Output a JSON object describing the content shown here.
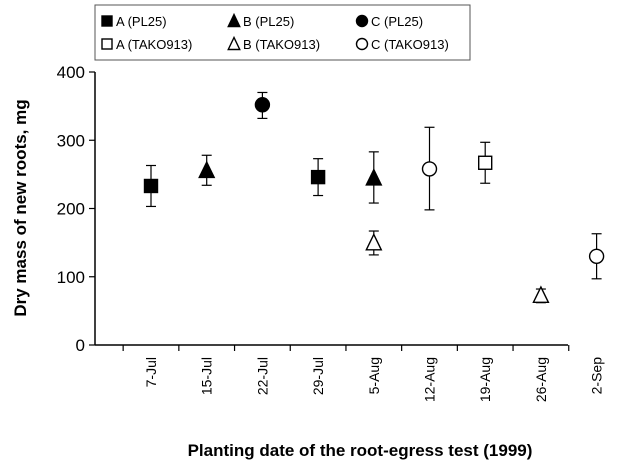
{
  "chart_data": {
    "type": "scatter",
    "xlabel": "Planting date of the root-egress test (1999)",
    "ylabel": "Dry mass of new roots, mg",
    "categories": [
      "7-Jul",
      "15-Jul",
      "22-Jul",
      "29-Jul",
      "5-Aug",
      "12-Aug",
      "19-Aug",
      "26-Aug",
      "2-Sep"
    ],
    "ylim": [
      0,
      400
    ],
    "yticks": [
      0,
      100,
      200,
      300,
      400
    ],
    "grid": false,
    "legend_position": "top",
    "series": [
      {
        "name": "A (PL25)",
        "marker": "square",
        "filled": true,
        "points": [
          {
            "x": "7-Jul",
            "y": 233,
            "err_low": 203,
            "err_high": 263
          },
          {
            "x": "29-Jul",
            "y": 246,
            "err_low": 219,
            "err_high": 273
          }
        ]
      },
      {
        "name": "B (PL25)",
        "marker": "triangle",
        "filled": true,
        "points": [
          {
            "x": "15-Jul",
            "y": 256,
            "err_low": 234,
            "err_high": 278
          },
          {
            "x": "5-Aug",
            "y": 245,
            "err_low": 208,
            "err_high": 283
          }
        ]
      },
      {
        "name": "C (PL25)",
        "marker": "circle",
        "filled": true,
        "points": [
          {
            "x": "22-Jul",
            "y": 352,
            "err_low": 332,
            "err_high": 370
          }
        ]
      },
      {
        "name": "A (TAKO913)",
        "marker": "square",
        "filled": false,
        "points": [
          {
            "x": "19-Aug",
            "y": 267,
            "err_low": 237,
            "err_high": 297
          }
        ]
      },
      {
        "name": "B (TAKO913)",
        "marker": "triangle",
        "filled": false,
        "points": [
          {
            "x": "5-Aug",
            "y": 150,
            "err_low": 132,
            "err_high": 167
          },
          {
            "x": "26-Aug",
            "y": 73,
            "err_low": 62,
            "err_high": 82
          }
        ]
      },
      {
        "name": "C (TAKO913)",
        "marker": "circle",
        "filled": false,
        "points": [
          {
            "x": "12-Aug",
            "y": 258,
            "err_low": 198,
            "err_high": 319
          },
          {
            "x": "2-Sep",
            "y": 130,
            "err_low": 97,
            "err_high": 163
          }
        ]
      }
    ]
  }
}
